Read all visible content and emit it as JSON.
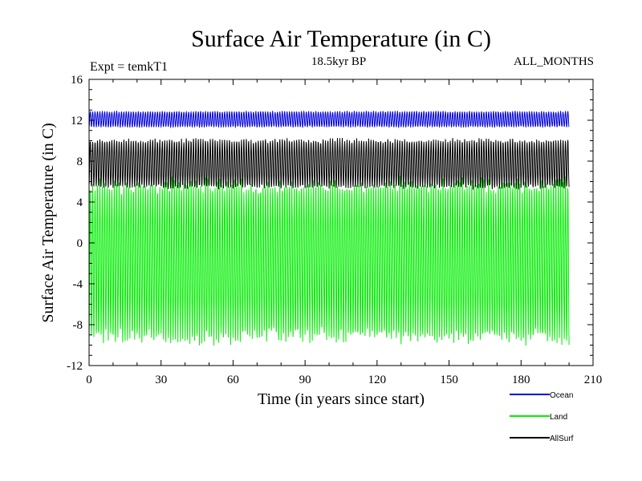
{
  "chart_data": {
    "type": "line",
    "title": "Surface Air Temperature (in C)",
    "subtitle": "18.5kyr BP",
    "experiment_label": "Expt = temkT1",
    "months_label": "ALL_MONTHS",
    "xlabel": "Time (in years since start)",
    "ylabel": "Surface Air Temperature (in C)",
    "xlim": [
      0,
      210
    ],
    "ylim": [
      -12,
      16
    ],
    "x_ticks": [
      0,
      30,
      60,
      90,
      120,
      150,
      180,
      210
    ],
    "y_ticks": [
      -12,
      -8,
      -4,
      0,
      4,
      8,
      12,
      16
    ],
    "x_tick_labels": [
      "0",
      "30",
      "60",
      "90",
      "120",
      "150",
      "180",
      "210"
    ],
    "y_tick_labels": [
      "-12",
      "-8",
      "-4",
      "0",
      "4",
      "8",
      "12",
      "16"
    ],
    "grid": false,
    "legend_position": "bottom-right, outside plot",
    "series": [
      {
        "name": "Ocean",
        "color": "#0000dd",
        "x_start": 0,
        "x_end": 200,
        "months_per_year": 12,
        "seasonal_min": 11.3,
        "seasonal_max": 12.9,
        "approx_mean": 12.1
      },
      {
        "name": "Land",
        "color": "#00ee00",
        "x_start": 0,
        "x_end": 200,
        "months_per_year": 12,
        "seasonal_min": -9.8,
        "seasonal_max": 6.3,
        "approx_mean": -1.5
      },
      {
        "name": "AllSurf",
        "color": "#000000",
        "x_start": 0,
        "x_end": 200,
        "months_per_year": 12,
        "seasonal_min": 5.3,
        "seasonal_max": 10.2,
        "approx_mean": 7.8
      }
    ]
  }
}
